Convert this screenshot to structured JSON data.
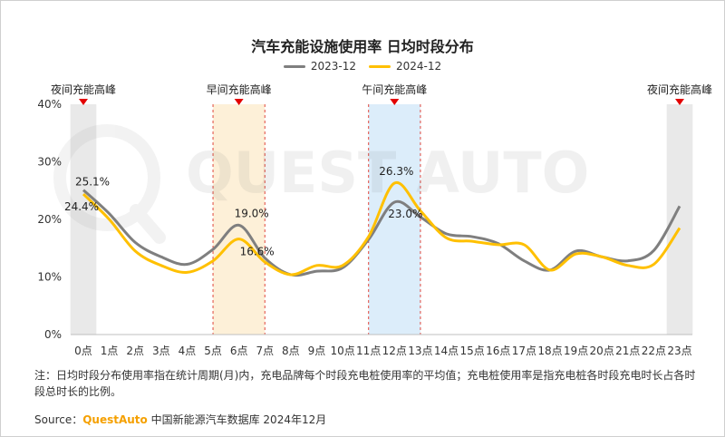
{
  "title": "汽车充能设施使用率 日均时段分布",
  "note": "注：日均时段分布使用率指在统计周期(月)内，充电品牌每个时段充电桩使用率的平均值；充电桩使用率是指充电桩各时段充电时长占各时段总时长的比例。",
  "source": {
    "prefix": "Source：",
    "brand": "QuestAuto",
    "text": " 中国新能源汽车数据库 2024年12月"
  },
  "watermark": "QUEST AUTO",
  "chart_data": {
    "type": "line",
    "title": "汽车充能设施使用率 日均时段分布",
    "categories": [
      "0点",
      "1点",
      "2点",
      "3点",
      "4点",
      "5点",
      "6点",
      "7点",
      "8点",
      "9点",
      "10点",
      "11点",
      "12点",
      "13点",
      "14点",
      "15点",
      "16点",
      "17点",
      "18点",
      "19点",
      "20点",
      "21点",
      "22点",
      "23点"
    ],
    "ylim": [
      0,
      40
    ],
    "yticks": [
      "0%",
      "10%",
      "20%",
      "30%",
      "40%"
    ],
    "series": [
      {
        "name": "2023-12",
        "color": "#7f7f7f",
        "values": [
          25.1,
          21.0,
          16.0,
          13.5,
          12.2,
          14.8,
          19.0,
          13.3,
          10.4,
          11.0,
          11.6,
          16.5,
          23.0,
          20.4,
          17.5,
          17.0,
          15.8,
          12.8,
          11.2,
          14.5,
          13.5,
          12.8,
          14.6,
          22.3
        ]
      },
      {
        "name": "2024-12",
        "color": "#ffc000",
        "values": [
          24.4,
          20.0,
          14.5,
          12.0,
          10.8,
          12.8,
          16.6,
          12.6,
          10.4,
          12.0,
          12.0,
          17.0,
          26.3,
          21.5,
          16.8,
          16.2,
          15.6,
          15.6,
          11.2,
          14.0,
          13.5,
          12.0,
          12.2,
          18.5
        ]
      }
    ],
    "data_labels": [
      {
        "series": 0,
        "index": 0,
        "text": "25.1%"
      },
      {
        "series": 1,
        "index": 0,
        "text": "24.4%"
      },
      {
        "series": 0,
        "index": 6,
        "text": "19.0%"
      },
      {
        "series": 1,
        "index": 6,
        "text": "16.6%"
      },
      {
        "series": 1,
        "index": 12,
        "text": "26.3%"
      },
      {
        "series": 0,
        "index": 12,
        "text": "23.0%"
      }
    ],
    "peak_bands": [
      {
        "label": "夜间充能高峰",
        "start": -0.5,
        "end": 0.5,
        "fill": "#e9e9e9",
        "border": "none"
      },
      {
        "label": "早间充能高峰",
        "start": 5.0,
        "end": 7.0,
        "fill": "#fdf0d8",
        "border": "#e0483e"
      },
      {
        "label": "午间充能高峰",
        "start": 11.0,
        "end": 13.0,
        "fill": "#dcedfa",
        "border": "#e0483e"
      },
      {
        "label": "夜间充能高峰",
        "start": 22.5,
        "end": 23.5,
        "fill": "#e9e9e9",
        "border": "none"
      }
    ]
  }
}
